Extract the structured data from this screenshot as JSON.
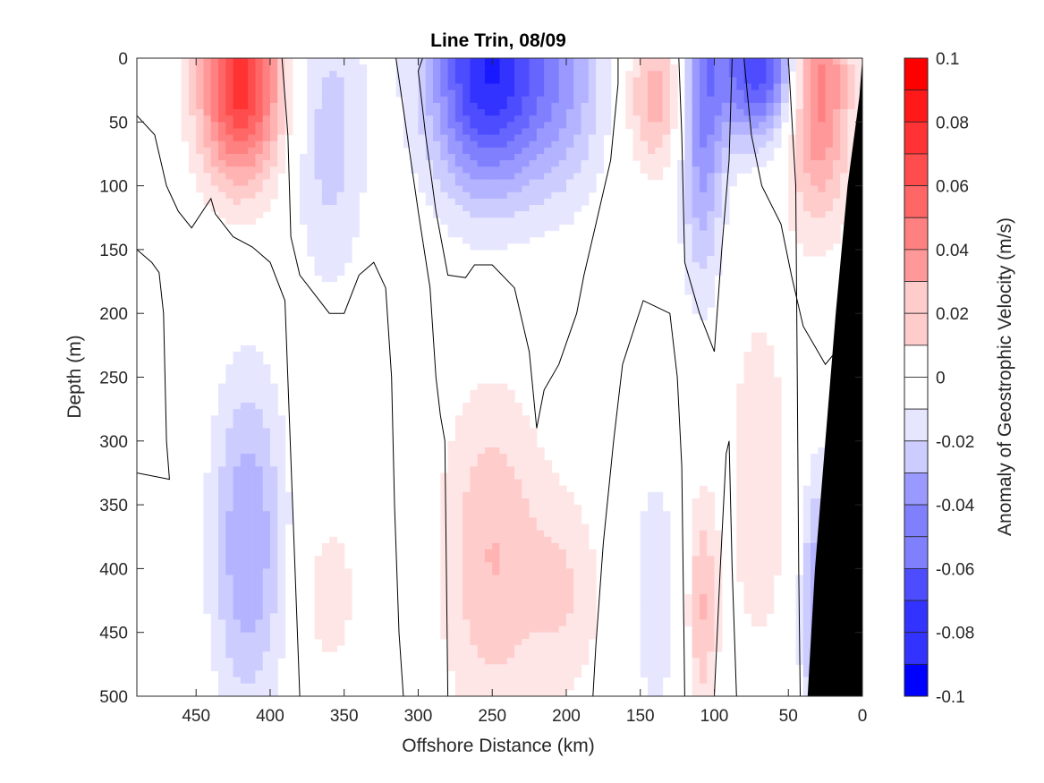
{
  "chart_data": {
    "type": "heatmap",
    "title": "Line Trin, 08/09",
    "xlabel": "Offshore Distance (km)",
    "ylabel": "Depth (m)",
    "colorbar_label": "Anomaly of Geostrophic Velocity (m/s)",
    "xlim": [
      490,
      0
    ],
    "ylim": [
      500,
      0
    ],
    "x_direction": "reversed",
    "y_direction": "reversed (depth increases downward)",
    "xticks": [
      450,
      400,
      350,
      300,
      250,
      200,
      150,
      100,
      50,
      0
    ],
    "xtick_labels": [
      "450",
      "400",
      "350",
      "300",
      "250",
      "200",
      "150",
      "100",
      "50",
      "0"
    ],
    "yticks": [
      0,
      50,
      100,
      150,
      200,
      250,
      300,
      350,
      400,
      450,
      500
    ],
    "ytick_labels": [
      "0",
      "50",
      "100",
      "150",
      "200",
      "250",
      "300",
      "350",
      "400",
      "450",
      "500"
    ],
    "clim": [
      -0.1,
      0.1
    ],
    "colorbar_ticks": [
      0.1,
      0.08,
      0.06,
      0.04,
      0.02,
      0,
      -0.02,
      -0.04,
      -0.06,
      -0.08,
      -0.1
    ],
    "colorbar_tick_labels": [
      "0.1",
      "0.08",
      "0.06",
      "0.04",
      "0.02",
      "0",
      "-0.02",
      "-0.04",
      "-0.06",
      "-0.08",
      "-0.1"
    ],
    "colors": {
      "positive_max": "#ff0000",
      "negative_max": "#0000ff",
      "zero": "#ffffff",
      "bathymetry": "#000000",
      "contour_line": "#000000"
    },
    "levels_step": 0.01,
    "grid": false,
    "features": [
      {
        "kind": "positive",
        "x_km": 420,
        "depth_m": 20,
        "peak": 0.085,
        "x_halfwidth_km": 28,
        "depth_extent_m": 130
      },
      {
        "kind": "negative",
        "x_km": 360,
        "depth_m": 60,
        "peak": -0.025,
        "x_halfwidth_km": 25,
        "depth_extent_m": 200
      },
      {
        "kind": "negative",
        "x_km": 253,
        "depth_m": 10,
        "peak": -0.09,
        "x_halfwidth_km": 40,
        "depth_extent_m": 160
      },
      {
        "kind": "negative",
        "x_km": 200,
        "depth_m": 20,
        "peak": -0.03,
        "x_halfwidth_km": 30,
        "depth_extent_m": 150
      },
      {
        "kind": "positive",
        "x_km": 140,
        "depth_m": 30,
        "peak": 0.035,
        "x_halfwidth_km": 20,
        "depth_extent_m": 100
      },
      {
        "kind": "negative",
        "x_km": 108,
        "depth_m": 40,
        "peak": -0.05,
        "x_halfwidth_km": 15,
        "depth_extent_m": 220
      },
      {
        "kind": "negative",
        "x_km": 70,
        "depth_m": 5,
        "peak": -0.08,
        "x_halfwidth_km": 28,
        "depth_extent_m": 100
      },
      {
        "kind": "positive",
        "x_km": 30,
        "depth_m": 20,
        "peak": 0.06,
        "x_halfwidth_km": 22,
        "depth_extent_m": 170
      },
      {
        "kind": "negative",
        "x_km": 415,
        "depth_m": 380,
        "peak": -0.04,
        "x_halfwidth_km": 25,
        "depth_extent_m": 220
      },
      {
        "kind": "positive",
        "x_km": 360,
        "depth_m": 420,
        "peak": 0.015,
        "x_halfwidth_km": 22,
        "depth_extent_m": 120
      },
      {
        "kind": "positive",
        "x_km": 250,
        "depth_m": 390,
        "peak": 0.03,
        "x_halfwidth_km": 35,
        "depth_extent_m": 220
      },
      {
        "kind": "positive",
        "x_km": 200,
        "depth_m": 420,
        "peak": 0.018,
        "x_halfwidth_km": 25,
        "depth_extent_m": 140
      },
      {
        "kind": "negative",
        "x_km": 140,
        "depth_m": 420,
        "peak": -0.02,
        "x_halfwidth_km": 15,
        "depth_extent_m": 160
      },
      {
        "kind": "positive",
        "x_km": 108,
        "depth_m": 430,
        "peak": 0.03,
        "x_halfwidth_km": 10,
        "depth_extent_m": 150
      },
      {
        "kind": "positive",
        "x_km": 70,
        "depth_m": 330,
        "peak": 0.018,
        "x_halfwidth_km": 22,
        "depth_extent_m": 250
      },
      {
        "kind": "negative",
        "x_km": 30,
        "depth_m": 430,
        "peak": -0.04,
        "x_halfwidth_km": 12,
        "depth_extent_m": 180
      }
    ],
    "zero_contours": [
      [
        [
          490,
          45
        ],
        [
          478,
          60
        ],
        [
          470,
          100
        ],
        [
          462,
          120
        ],
        [
          453,
          133
        ],
        [
          440,
          110
        ],
        [
          437,
          122
        ],
        [
          425,
          140
        ],
        [
          412,
          148
        ],
        [
          400,
          160
        ],
        [
          390,
          190
        ],
        [
          380,
          500
        ]
      ],
      [
        [
          490,
          150
        ],
        [
          480,
          160
        ],
        [
          475,
          168
        ],
        [
          472,
          200
        ],
        [
          470,
          300
        ],
        [
          468,
          330
        ],
        [
          490,
          325
        ]
      ],
      [
        [
          392,
          0
        ],
        [
          388,
          60
        ],
        [
          386,
          140
        ],
        [
          380,
          170
        ],
        [
          360,
          200
        ],
        [
          350,
          200
        ],
        [
          340,
          170
        ],
        [
          330,
          160
        ],
        [
          322,
          180
        ],
        [
          318,
          250
        ],
        [
          316,
          350
        ],
        [
          313,
          450
        ],
        [
          310,
          500
        ]
      ],
      [
        [
          315,
          0
        ],
        [
          310,
          40
        ],
        [
          300,
          120
        ],
        [
          292,
          180
        ],
        [
          288,
          250
        ],
        [
          285,
          280
        ],
        [
          282,
          300
        ],
        [
          280,
          500
        ]
      ],
      [
        [
          297,
          0
        ],
        [
          300,
          10
        ],
        [
          295,
          60
        ],
        [
          288,
          120
        ],
        [
          280,
          170
        ],
        [
          268,
          172
        ],
        [
          262,
          162
        ],
        [
          250,
          162
        ],
        [
          235,
          180
        ],
        [
          225,
          230
        ],
        [
          220,
          290
        ],
        [
          215,
          260
        ],
        [
          205,
          240
        ],
        [
          193,
          200
        ],
        [
          188,
          170
        ],
        [
          180,
          130
        ],
        [
          170,
          80
        ],
        [
          165,
          20
        ],
        [
          165,
          0
        ]
      ],
      [
        [
          182,
          500
        ],
        [
          180,
          460
        ],
        [
          175,
          380
        ],
        [
          168,
          300
        ],
        [
          162,
          240
        ],
        [
          148,
          190
        ],
        [
          130,
          200
        ],
        [
          125,
          250
        ],
        [
          122,
          320
        ],
        [
          120,
          500
        ]
      ],
      [
        [
          124,
          0
        ],
        [
          122,
          60
        ],
        [
          120,
          160
        ],
        [
          110,
          200
        ],
        [
          100,
          230
        ],
        [
          95,
          150
        ],
        [
          90,
          80
        ],
        [
          88,
          0
        ]
      ],
      [
        [
          85,
          500
        ],
        [
          88,
          400
        ],
        [
          90,
          300
        ],
        [
          92,
          310
        ],
        [
          96,
          400
        ],
        [
          100,
          500
        ]
      ],
      [
        [
          80,
          0
        ],
        [
          75,
          60
        ],
        [
          68,
          100
        ],
        [
          55,
          130
        ],
        [
          48,
          170
        ],
        [
          40,
          210
        ],
        [
          25,
          240
        ],
        [
          18,
          230
        ]
      ],
      [
        [
          50,
          0
        ],
        [
          45,
          100
        ],
        [
          44,
          250
        ],
        [
          43,
          400
        ],
        [
          42,
          500
        ]
      ]
    ],
    "bathymetry": [
      [
        0,
        0
      ],
      [
        2,
        30
      ],
      [
        10,
        100
      ],
      [
        18,
        200
      ],
      [
        25,
        300
      ],
      [
        32,
        400
      ],
      [
        37,
        500
      ]
    ]
  }
}
